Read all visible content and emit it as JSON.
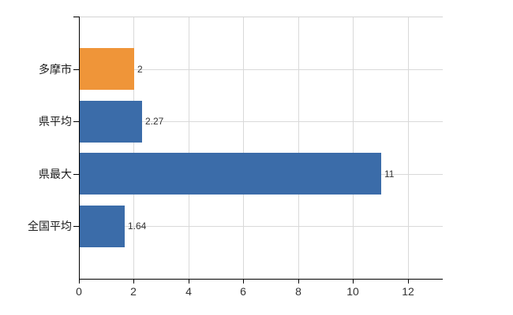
{
  "chart_data": {
    "type": "bar",
    "orientation": "horizontal",
    "title": "",
    "xlabel": "",
    "ylabel": "",
    "categories": [
      "多摩市",
      "県平均",
      "県最大",
      "全国平均"
    ],
    "values": [
      2,
      2.27,
      11,
      1.64
    ],
    "value_labels": [
      "2",
      "2.27",
      "11",
      "1.64"
    ],
    "series_colors": [
      "#EF9539",
      "#3B6CA9",
      "#3B6CA9",
      "#3B6CA9"
    ],
    "x_ticks": [
      0,
      2,
      4,
      6,
      8,
      10,
      12
    ],
    "x_tick_labels": [
      "0",
      "2",
      "4",
      "6",
      "8",
      "10",
      "12"
    ],
    "xlim": [
      0,
      13.25
    ],
    "grid": true,
    "legend": false
  },
  "colors": {
    "bar_orange": "#EF9539",
    "bar_blue": "#3B6CA9",
    "grid": "#D9D9D9",
    "axis": "#000000",
    "category_text": "#1A1A1A",
    "value_text": "#333333",
    "tick_text": "#333333",
    "background": "#FFFFFF"
  }
}
